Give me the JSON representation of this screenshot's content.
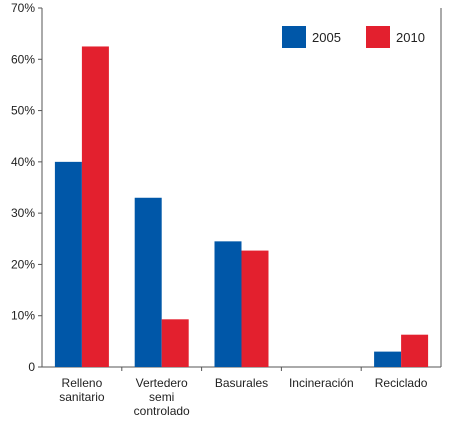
{
  "chart_data": {
    "type": "bar",
    "categories": [
      [
        "Relleno",
        "sanitario"
      ],
      [
        "Vertedero",
        "semi",
        "controlado"
      ],
      [
        "Basurales"
      ],
      [
        "Incineración"
      ],
      [
        "Reciclado"
      ]
    ],
    "series": [
      {
        "name": "2005",
        "color": "#0057a8",
        "values": [
          40,
          33,
          24.5,
          0,
          3
        ]
      },
      {
        "name": "2010",
        "color": "#e3202e",
        "values": [
          62.5,
          9.3,
          22.7,
          0,
          6.3
        ]
      }
    ],
    "ylim": [
      0,
      70
    ],
    "yticks": [
      0,
      10,
      20,
      30,
      40,
      50,
      60,
      70
    ],
    "ytick_labels": [
      "0",
      "10%",
      "20%",
      "30%",
      "40%",
      "50%",
      "60%",
      "70%"
    ],
    "grid": false,
    "legend_position": "top-right"
  }
}
